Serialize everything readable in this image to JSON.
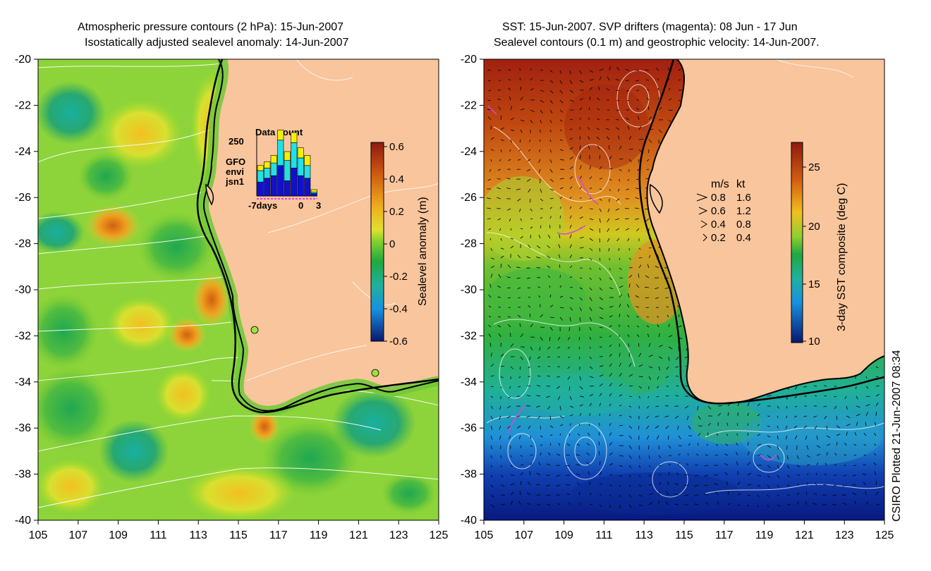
{
  "left_panel": {
    "title_line1": "Atmospheric pressure contours (2 hPa): 15-Jun-2007",
    "title_line2": "Isostatically adjusted sealevel anomaly: 14-Jun-2007",
    "colorbar": {
      "label": "Sealevel anomaly (m)",
      "ticks": [
        "0.6",
        "0.4",
        "0.2",
        "0",
        "-0.2",
        "-0.4",
        "-0.6"
      ]
    },
    "inset": {
      "title": "Data count",
      "ymax_label": "250",
      "x_labels": [
        "-7days",
        "0",
        "3"
      ],
      "legend": [
        {
          "name": "GFO",
          "color": "#f4f000"
        },
        {
          "name": "envi",
          "color": "#22e0e8"
        },
        {
          "name": "jsn1",
          "color": "#1010d0"
        }
      ],
      "bars": [
        {
          "jsn1": 55,
          "envi": 45,
          "gfo": 20
        },
        {
          "jsn1": 70,
          "envi": 40,
          "gfo": 25
        },
        {
          "jsn1": 80,
          "envi": 50,
          "gfo": 30
        },
        {
          "jsn1": 120,
          "envi": 100,
          "gfo": 40
        },
        {
          "jsn1": 60,
          "envi": 80,
          "gfo": 35
        },
        {
          "jsn1": 110,
          "envi": 100,
          "gfo": 40
        },
        {
          "jsn1": 80,
          "envi": 70,
          "gfo": 40
        },
        {
          "jsn1": 70,
          "envi": 50,
          "gfo": 40
        },
        {
          "jsn1": 10,
          "envi": 5,
          "gfo": 10
        }
      ]
    }
  },
  "right_panel": {
    "title_line1": "SST: 15-Jun-2007. SVP drifters (magenta): 08 Jun - 17 Jun",
    "title_line2": "Sealevel contours (0.1 m) and geostrophic velocity: 14-Jun-2007.",
    "colorbar": {
      "label": "3-day SST composite (deg C)",
      "ticks": [
        "25",
        "20",
        "15",
        "10"
      ]
    },
    "velocity_legend": {
      "header_ms": "m/s",
      "header_kt": "kt",
      "rows": [
        {
          "ms": "0.8",
          "kt": "1.6"
        },
        {
          "ms": "0.6",
          "kt": "1.2"
        },
        {
          "ms": "0.4",
          "kt": "0.8"
        },
        {
          "ms": "0.2",
          "kt": "0.4"
        }
      ]
    }
  },
  "axes": {
    "x_ticks": [
      "105",
      "107",
      "109",
      "111",
      "113",
      "115",
      "117",
      "119",
      "121",
      "123",
      "125"
    ],
    "y_ticks": [
      "-20",
      "-22",
      "-24",
      "-26",
      "-28",
      "-30",
      "-32",
      "-34",
      "-36",
      "-38",
      "-40"
    ]
  },
  "credit": "CSIRO Plotted 21-Jun-2007 08:34",
  "colors": {
    "land": "#f9c59c",
    "coast": "#000000",
    "drifter": "#e040e0"
  }
}
